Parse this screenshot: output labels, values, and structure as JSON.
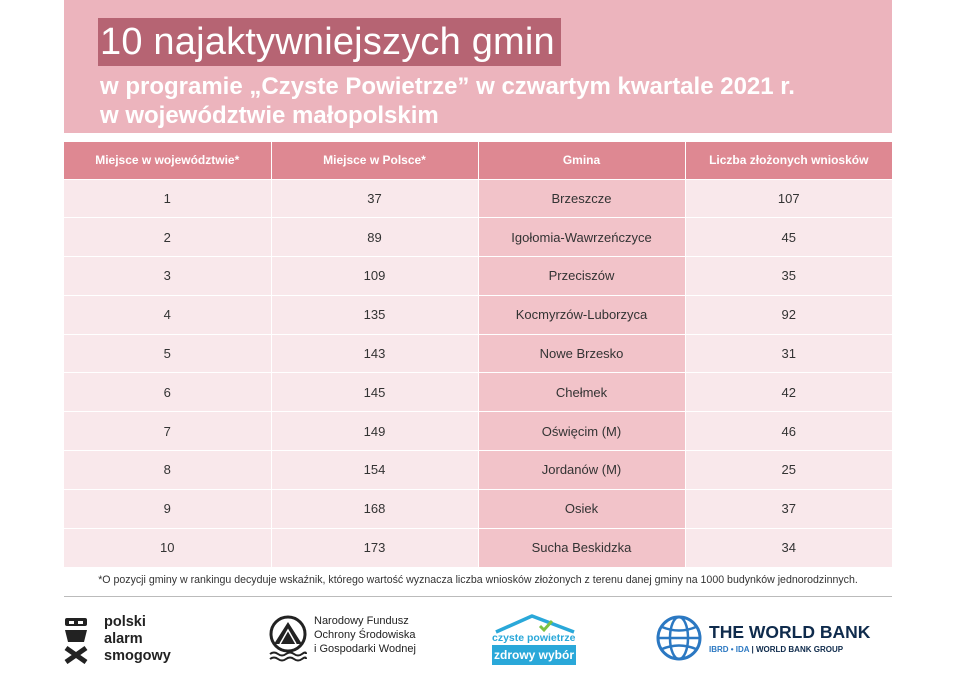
{
  "header": {
    "title_line1": "10 najaktywniejszych gmin",
    "title_line2": "w programie „Czyste Powietrze” w czwartym kwartale 2021 r.",
    "title_line3": "w województwie małopolskim"
  },
  "table": {
    "headers": [
      "Miejsce w województwie*",
      "Miejsce w Polsce*",
      "Gmina",
      "Liczba złożonych wniosków"
    ],
    "rows": [
      [
        "1",
        "37",
        "Brzeszcze",
        "107"
      ],
      [
        "2",
        "89",
        "Igołomia-Wawrzeńczyce",
        "45"
      ],
      [
        "3",
        "109",
        "Przeciszów",
        "35"
      ],
      [
        "4",
        "135",
        "Kocmyrzów-Luborzyca",
        "92"
      ],
      [
        "5",
        "143",
        "Nowe Brzesko",
        "31"
      ],
      [
        "6",
        "145",
        "Chełmek",
        "42"
      ],
      [
        "7",
        "149",
        "Oświęcim (M)",
        "46"
      ],
      [
        "8",
        "154",
        "Jordanów (M)",
        "25"
      ],
      [
        "9",
        "168",
        "Osiek",
        "37"
      ],
      [
        "10",
        "173",
        "Sucha Beskidzka",
        "34"
      ]
    ]
  },
  "footnote": "*O pozycji gminy w rankingu decyduje wskaźnik, którego wartość wyznacza liczba wniosków złożonych z terenu danej gminy na 1000 budynków jednorodzinnych.",
  "logos": {
    "psa": {
      "lines": [
        "polski",
        "alarm",
        "smogowy"
      ],
      "icon": "psa-logo-icon"
    },
    "nfosigw": {
      "lines": [
        "Narodowy Fundusz",
        "Ochrony Środowiska",
        "i Gospodarki Wodnej"
      ],
      "icon": "nfosigw-logo-icon"
    },
    "czyste": {
      "line1": "czyste powietrze",
      "line2": "zdrowy wybór",
      "icon": "house-roof-icon",
      "color": "#2aa8d9"
    },
    "worldbank": {
      "name": "THE WORLD BANK",
      "sub_ibrd": "IBRD • IDA",
      "sub_group": "WORLD BANK GROUP",
      "icon": "globe-icon",
      "color": "#0f2b4c"
    }
  },
  "colors": {
    "header_bg": "#ecb4bd",
    "title_highlight": "#b66473",
    "table_header": "#de8892",
    "row_bg": "#f9e8eb",
    "gmina_col_bg": "#f2c3c9"
  }
}
